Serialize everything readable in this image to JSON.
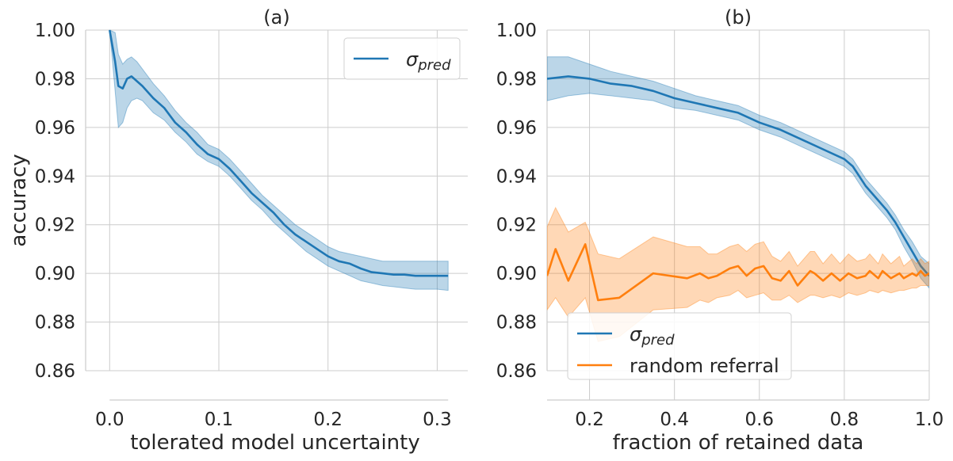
{
  "chart_data": [
    {
      "type": "line",
      "title": "(a)",
      "xlabel": "tolerated model uncertainty",
      "ylabel": "accuracy",
      "xlim": [
        -0.022,
        0.328
      ],
      "ylim": [
        0.86,
        1.0
      ],
      "xticks": [
        "0.0",
        "0.1",
        "0.2",
        "0.3"
      ],
      "yticks": [
        "0.86",
        "0.88",
        "0.90",
        "0.92",
        "0.94",
        "0.96",
        "0.98",
        "1.00"
      ],
      "grid": true,
      "legend_position": "top-right",
      "series": [
        {
          "name": "σ",
          "name_sub": "pred",
          "color": "#1f77b4",
          "x": [
            0.0,
            0.005,
            0.008,
            0.012,
            0.016,
            0.02,
            0.025,
            0.03,
            0.04,
            0.05,
            0.06,
            0.07,
            0.08,
            0.09,
            0.1,
            0.11,
            0.12,
            0.13,
            0.14,
            0.15,
            0.16,
            0.17,
            0.18,
            0.19,
            0.2,
            0.21,
            0.22,
            0.23,
            0.24,
            0.25,
            0.26,
            0.27,
            0.28,
            0.29,
            0.3,
            0.31
          ],
          "y": [
            1.0,
            0.987,
            0.977,
            0.976,
            0.98,
            0.981,
            0.979,
            0.977,
            0.972,
            0.968,
            0.962,
            0.958,
            0.953,
            0.949,
            0.947,
            0.943,
            0.938,
            0.933,
            0.929,
            0.925,
            0.92,
            0.916,
            0.913,
            0.91,
            0.907,
            0.905,
            0.904,
            0.902,
            0.9005,
            0.9,
            0.8995,
            0.8995,
            0.899,
            0.899,
            0.899,
            0.899
          ],
          "lower": [
            1.0,
            0.975,
            0.96,
            0.962,
            0.968,
            0.971,
            0.972,
            0.971,
            0.966,
            0.963,
            0.958,
            0.954,
            0.949,
            0.946,
            0.944,
            0.94,
            0.935,
            0.93,
            0.926,
            0.921,
            0.917,
            0.913,
            0.909,
            0.906,
            0.903,
            0.901,
            0.899,
            0.897,
            0.896,
            0.895,
            0.8945,
            0.894,
            0.8935,
            0.8935,
            0.8935,
            0.893
          ],
          "upper": [
            1.0,
            0.999,
            0.99,
            0.986,
            0.988,
            0.989,
            0.987,
            0.984,
            0.978,
            0.973,
            0.967,
            0.962,
            0.958,
            0.953,
            0.951,
            0.947,
            0.942,
            0.937,
            0.932,
            0.928,
            0.924,
            0.92,
            0.917,
            0.914,
            0.911,
            0.909,
            0.908,
            0.907,
            0.906,
            0.905,
            0.905,
            0.905,
            0.905,
            0.905,
            0.905,
            0.905
          ]
        }
      ]
    },
    {
      "type": "line",
      "title": "(b)",
      "xlabel": "fraction of retained data",
      "ylabel": "",
      "xlim": [
        0.1,
        1.0
      ],
      "ylim": [
        0.86,
        1.0
      ],
      "xticks": [
        "0.2",
        "0.4",
        "0.6",
        "0.8",
        "1.0"
      ],
      "yticks": [
        "0.86",
        "0.88",
        "0.90",
        "0.92",
        "0.94",
        "0.96",
        "0.98",
        "1.00"
      ],
      "grid": true,
      "legend_position": "bottom-left",
      "series": [
        {
          "name": "σ",
          "name_sub": "pred",
          "color": "#1f77b4",
          "x": [
            0.1,
            0.15,
            0.2,
            0.25,
            0.3,
            0.35,
            0.4,
            0.45,
            0.5,
            0.55,
            0.6,
            0.65,
            0.7,
            0.75,
            0.8,
            0.82,
            0.85,
            0.88,
            0.9,
            0.92,
            0.94,
            0.96,
            0.98,
            1.0
          ],
          "y": [
            0.98,
            0.981,
            0.98,
            0.978,
            0.977,
            0.975,
            0.972,
            0.97,
            0.968,
            0.966,
            0.962,
            0.959,
            0.955,
            0.951,
            0.947,
            0.944,
            0.936,
            0.93,
            0.926,
            0.921,
            0.915,
            0.909,
            0.903,
            0.899
          ],
          "lower": [
            0.971,
            0.973,
            0.974,
            0.973,
            0.972,
            0.971,
            0.968,
            0.967,
            0.965,
            0.963,
            0.959,
            0.956,
            0.952,
            0.948,
            0.944,
            0.941,
            0.933,
            0.927,
            0.923,
            0.918,
            0.911,
            0.905,
            0.898,
            0.894
          ],
          "upper": [
            0.989,
            0.989,
            0.986,
            0.983,
            0.981,
            0.979,
            0.976,
            0.973,
            0.971,
            0.969,
            0.965,
            0.962,
            0.958,
            0.954,
            0.95,
            0.947,
            0.939,
            0.933,
            0.929,
            0.924,
            0.918,
            0.913,
            0.907,
            0.904
          ]
        },
        {
          "name": "random referral",
          "color": "#ff7f0e",
          "x": [
            0.1,
            0.12,
            0.15,
            0.19,
            0.22,
            0.27,
            0.35,
            0.43,
            0.46,
            0.48,
            0.5,
            0.53,
            0.55,
            0.57,
            0.59,
            0.61,
            0.63,
            0.65,
            0.67,
            0.69,
            0.7,
            0.72,
            0.73,
            0.75,
            0.77,
            0.79,
            0.81,
            0.83,
            0.85,
            0.86,
            0.88,
            0.89,
            0.91,
            0.93,
            0.94,
            0.96,
            0.97,
            0.98,
            0.99,
            1.0
          ],
          "y": [
            0.899,
            0.91,
            0.897,
            0.912,
            0.889,
            0.89,
            0.9,
            0.898,
            0.9,
            0.898,
            0.899,
            0.902,
            0.903,
            0.899,
            0.902,
            0.903,
            0.898,
            0.897,
            0.901,
            0.895,
            0.897,
            0.901,
            0.9,
            0.897,
            0.9,
            0.897,
            0.9,
            0.898,
            0.899,
            0.901,
            0.898,
            0.901,
            0.898,
            0.9,
            0.898,
            0.9,
            0.899,
            0.901,
            0.899,
            0.9
          ],
          "lower": [
            0.885,
            0.89,
            0.882,
            0.89,
            0.872,
            0.874,
            0.885,
            0.886,
            0.889,
            0.888,
            0.89,
            0.891,
            0.893,
            0.89,
            0.891,
            0.892,
            0.889,
            0.889,
            0.891,
            0.888,
            0.889,
            0.891,
            0.891,
            0.89,
            0.891,
            0.89,
            0.892,
            0.891,
            0.892,
            0.893,
            0.892,
            0.893,
            0.892,
            0.893,
            0.893,
            0.894,
            0.894,
            0.895,
            0.895,
            0.895
          ],
          "upper": [
            0.919,
            0.927,
            0.917,
            0.921,
            0.908,
            0.906,
            0.915,
            0.911,
            0.911,
            0.908,
            0.908,
            0.911,
            0.912,
            0.909,
            0.912,
            0.913,
            0.907,
            0.905,
            0.909,
            0.903,
            0.905,
            0.909,
            0.909,
            0.904,
            0.908,
            0.904,
            0.908,
            0.905,
            0.906,
            0.908,
            0.904,
            0.908,
            0.904,
            0.907,
            0.903,
            0.906,
            0.904,
            0.906,
            0.904,
            0.905
          ]
        }
      ]
    }
  ]
}
